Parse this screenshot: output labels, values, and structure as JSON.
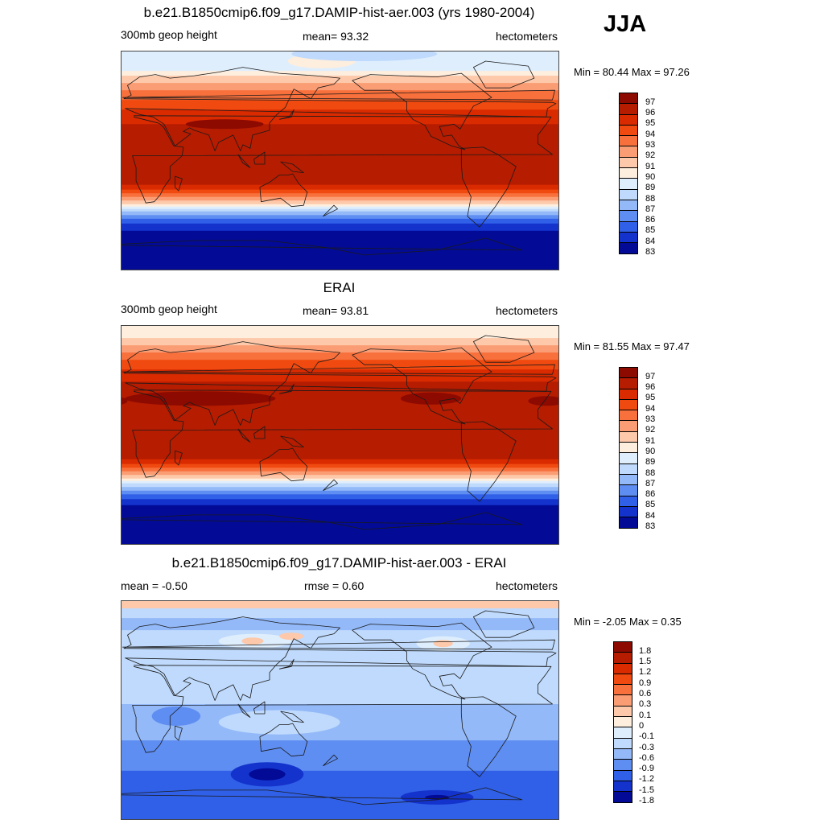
{
  "season": "JJA",
  "panels": [
    {
      "title": "b.e21.B1850cmip6.f09_g17.DAMIP-hist-aer.003 (yrs 1980-2004)",
      "left_label": "300mb geop height",
      "center_label": "mean=  93.32",
      "right_label": "hectometers",
      "minmax": "Min =  80.44 Max =  97.26",
      "colorbar": {
        "labels": [
          "97",
          "96",
          "95",
          "94",
          "93",
          "92",
          "91",
          "90",
          "89",
          "88",
          "87",
          "86",
          "85",
          "84",
          "83"
        ],
        "colors": [
          "#8c0a00",
          "#b51c00",
          "#d92a00",
          "#f04a10",
          "#f8703c",
          "#fb9d74",
          "#fdc9aa",
          "#fdeede",
          "#dfeefd",
          "#bfdafc",
          "#93b9f8",
          "#5f8ef2",
          "#3060e8",
          "#1333cc",
          "#020a96"
        ]
      },
      "field": {
        "bands": [
          {
            "lat": 90,
            "color": "#dfeefd"
          },
          {
            "lat": 74,
            "color": "#fdeede"
          },
          {
            "lat": 70,
            "color": "#fdc9aa"
          },
          {
            "lat": 64,
            "color": "#fb9d74"
          },
          {
            "lat": 58,
            "color": "#f8703c"
          },
          {
            "lat": 50,
            "color": "#f04a10"
          },
          {
            "lat": 42,
            "color": "#d92a00"
          },
          {
            "lat": 30,
            "color": "#b51c00"
          },
          {
            "lat": -20,
            "color": "#d92a00"
          },
          {
            "lat": -24,
            "color": "#f04a10"
          },
          {
            "lat": -27,
            "color": "#f8703c"
          },
          {
            "lat": -30,
            "color": "#fb9d74"
          },
          {
            "lat": -33,
            "color": "#fdc9aa"
          },
          {
            "lat": -36,
            "color": "#fdeede"
          },
          {
            "lat": -38,
            "color": "#dfeefd"
          },
          {
            "lat": -40,
            "color": "#bfdafc"
          },
          {
            "lat": -42,
            "color": "#93b9f8"
          },
          {
            "lat": -45,
            "color": "#5f8ef2"
          },
          {
            "lat": -48,
            "color": "#3060e8"
          },
          {
            "lat": -52,
            "color": "#1333cc"
          },
          {
            "lat": -58,
            "color": "#020a96"
          }
        ],
        "blobs": [
          {
            "lon": 85,
            "lat": 30,
            "rlon": 32,
            "rlat": 4,
            "color": "#8c0a00"
          },
          {
            "lon": 165,
            "lat": 82,
            "rlon": 28,
            "rlat": 6,
            "color": "#fdeede"
          },
          {
            "lon": 200,
            "lat": 88,
            "rlon": 60,
            "rlat": 6,
            "color": "#bfdafc"
          }
        ]
      }
    },
    {
      "title": "ERAI",
      "left_label": "300mb geop height",
      "center_label": "mean=  93.81",
      "right_label": "hectometers",
      "minmax": "Min =  81.55 Max =  97.47",
      "colorbar": {
        "labels": [
          "97",
          "96",
          "95",
          "94",
          "93",
          "92",
          "91",
          "90",
          "89",
          "88",
          "87",
          "86",
          "85",
          "84",
          "83"
        ],
        "colors": [
          "#8c0a00",
          "#b51c00",
          "#d92a00",
          "#f04a10",
          "#f8703c",
          "#fb9d74",
          "#fdc9aa",
          "#fdeede",
          "#dfeefd",
          "#bfdafc",
          "#93b9f8",
          "#5f8ef2",
          "#3060e8",
          "#1333cc",
          "#020a96"
        ]
      },
      "field": {
        "bands": [
          {
            "lat": 90,
            "color": "#fdeede"
          },
          {
            "lat": 80,
            "color": "#fdc9aa"
          },
          {
            "lat": 74,
            "color": "#fb9d74"
          },
          {
            "lat": 68,
            "color": "#f8703c"
          },
          {
            "lat": 62,
            "color": "#f04a10"
          },
          {
            "lat": 54,
            "color": "#d92a00"
          },
          {
            "lat": 44,
            "color": "#b51c00"
          },
          {
            "lat": -20,
            "color": "#d92a00"
          },
          {
            "lat": -24,
            "color": "#f04a10"
          },
          {
            "lat": -27,
            "color": "#f8703c"
          },
          {
            "lat": -30,
            "color": "#fb9d74"
          },
          {
            "lat": -33,
            "color": "#fdc9aa"
          },
          {
            "lat": -36,
            "color": "#fdeede"
          },
          {
            "lat": -38,
            "color": "#dfeefd"
          },
          {
            "lat": -40,
            "color": "#bfdafc"
          },
          {
            "lat": -43,
            "color": "#93b9f8"
          },
          {
            "lat": -46,
            "color": "#5f8ef2"
          },
          {
            "lat": -49,
            "color": "#3060e8"
          },
          {
            "lat": -53,
            "color": "#1333cc"
          },
          {
            "lat": -58,
            "color": "#020a96"
          }
        ],
        "blobs": [
          {
            "lon": 65,
            "lat": 30,
            "rlon": 62,
            "rlat": 6,
            "color": "#8c0a00"
          },
          {
            "lon": 255,
            "lat": 30,
            "rlon": 25,
            "rlat": 5,
            "color": "#8c0a00"
          },
          {
            "lon": 350,
            "lat": 28,
            "rlon": 15,
            "rlat": 4,
            "color": "#8c0a00"
          }
        ]
      }
    },
    {
      "title": "b.e21.B1850cmip6.f09_g17.DAMIP-hist-aer.003 - ERAI",
      "left_label": "mean =  -0.50",
      "center_label": "rmse =   0.60",
      "right_label": "hectometers",
      "minmax": "Min =  -2.05 Max =   0.35",
      "colorbar": {
        "labels": [
          "1.8",
          "1.5",
          "1.2",
          "0.9",
          "0.6",
          "0.3",
          "0.1",
          "0",
          "-0.1",
          "-0.3",
          "-0.6",
          "-0.9",
          "-1.2",
          "-1.5",
          "-1.8"
        ],
        "colors": [
          "#8c0a00",
          "#b51c00",
          "#d92a00",
          "#f04a10",
          "#f8703c",
          "#fb9d74",
          "#fdc9aa",
          "#fdeede",
          "#dfeefd",
          "#bfdafc",
          "#93b9f8",
          "#5f8ef2",
          "#3060e8",
          "#1333cc",
          "#020a96"
        ]
      },
      "field": {
        "bands": [
          {
            "lat": 90,
            "color": "#fdc9aa"
          },
          {
            "lat": 84,
            "color": "#bfdafc"
          },
          {
            "lat": 76,
            "color": "#93b9f8"
          },
          {
            "lat": 66,
            "color": "#bfdafc"
          },
          {
            "lat": 20,
            "color": "#bfdafc"
          },
          {
            "lat": 5,
            "color": "#93b9f8"
          },
          {
            "lat": -25,
            "color": "#5f8ef2"
          },
          {
            "lat": -50,
            "color": "#3060e8"
          }
        ],
        "blobs": [
          {
            "lon": 110,
            "lat": 57,
            "rlon": 30,
            "rlat": 6,
            "color": "#dfeefd"
          },
          {
            "lon": 108,
            "lat": 57,
            "rlon": 9,
            "rlat": 3,
            "color": "#fdc9aa"
          },
          {
            "lon": 140,
            "lat": 61,
            "rlon": 10,
            "rlat": 3,
            "color": "#fdc9aa"
          },
          {
            "lon": 265,
            "lat": 55,
            "rlon": 22,
            "rlat": 6,
            "color": "#dfeefd"
          },
          {
            "lon": 265,
            "lat": 55,
            "rlon": 8,
            "rlat": 3,
            "color": "#fdc9aa"
          },
          {
            "lon": 130,
            "lat": -10,
            "rlon": 50,
            "rlat": 10,
            "color": "#bfdafc"
          },
          {
            "lon": 45,
            "lat": -5,
            "rlon": 20,
            "rlat": 8,
            "color": "#5f8ef2"
          },
          {
            "lon": 120,
            "lat": -53,
            "rlon": 30,
            "rlat": 10,
            "color": "#1333cc"
          },
          {
            "lon": 120,
            "lat": -53,
            "rlon": 15,
            "rlat": 5,
            "color": "#020a96"
          },
          {
            "lon": 260,
            "lat": -72,
            "rlon": 30,
            "rlat": 6,
            "color": "#1333cc"
          },
          {
            "lon": 260,
            "lat": -72,
            "rlon": 10,
            "rlat": 2,
            "color": "#020a96"
          }
        ]
      }
    }
  ]
}
